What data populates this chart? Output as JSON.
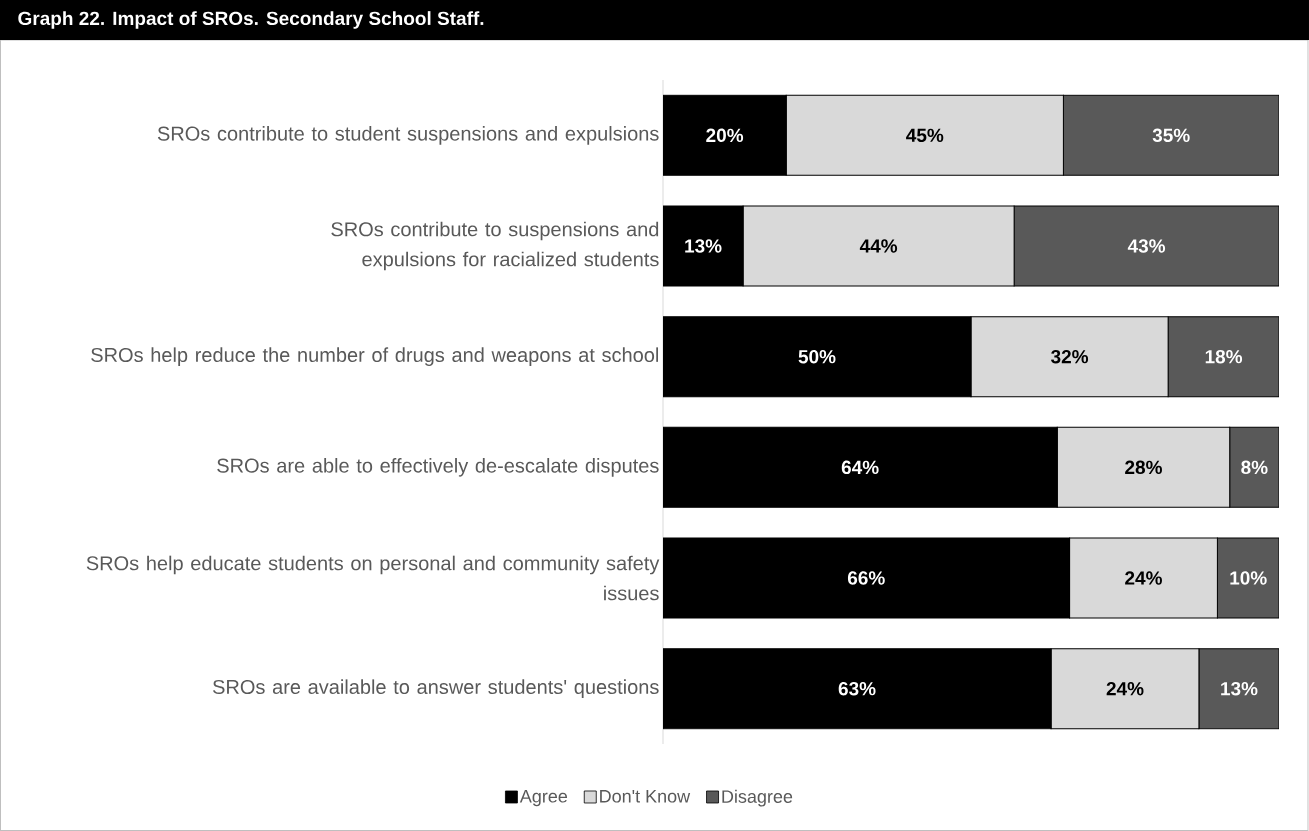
{
  "chart_data": {
    "type": "bar",
    "orientation": "horizontal",
    "stacked": true,
    "title": "Graph 22. Impact of SROs. Secondary School Staff.",
    "categories": [
      "SROs contribute to student suspensions and expulsions",
      "SROs contribute to suspensions and expulsions for racialized students",
      "SROs help reduce the number of drugs and weapons at school",
      "SROs are able to effectively de-escalate disputes",
      "SROs help educate students on personal and community safety issues",
      "SROs are available to answer students' questions"
    ],
    "xlim": [
      0,
      100
    ],
    "tick_labels": "y",
    "legend": "bottom",
    "series": [
      {
        "name": "Agree",
        "color": "#000000",
        "values": [
          20,
          13,
          50,
          64,
          66,
          63
        ],
        "value_labels": [
          "20%",
          "13%",
          "50%",
          "64%",
          "66%",
          "63%"
        ]
      },
      {
        "name": "Don't Know",
        "color": "#d9d9d9",
        "values": [
          45,
          44,
          32,
          28,
          24,
          24
        ],
        "value_labels": [
          "45%",
          "44%",
          "32%",
          "28%",
          "24%",
          "24%"
        ]
      },
      {
        "name": "Disagree",
        "color": "#595959",
        "values": [
          35,
          43,
          18,
          8,
          10,
          13
        ],
        "value_labels": [
          "35%",
          "43%",
          "18%",
          "8%",
          "10%",
          "13%"
        ]
      }
    ]
  }
}
